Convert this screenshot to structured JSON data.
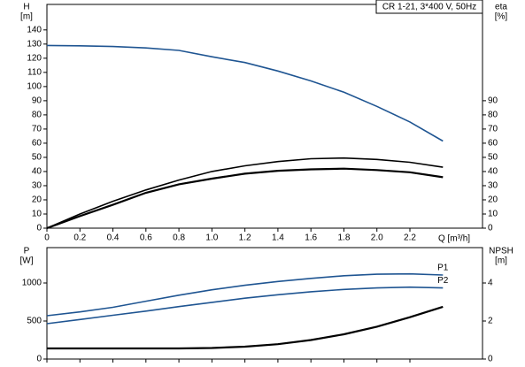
{
  "chart_data": [
    {
      "type": "line",
      "title": "CR 1-21, 3*400 V, 50Hz",
      "ylabel": "H",
      "yunit": "[m]",
      "y2label": "eta",
      "y2unit": "[%]",
      "xlabel": "Q [m³/h]",
      "x": [
        0,
        0.2,
        0.4,
        0.6,
        0.8,
        1.0,
        1.2,
        1.4,
        1.6,
        1.8,
        2.0,
        2.2,
        2.4
      ],
      "series": [
        {
          "color": "#1f5592",
          "axis": "y",
          "values": [
            129,
            128.8,
            128.3,
            127.3,
            125.5,
            121,
            117,
            111,
            104,
            96,
            86,
            75,
            61.5
          ]
        },
        {
          "color": "#000000",
          "axis": "y2",
          "values": [
            0,
            10,
            19,
            27,
            34,
            40,
            44,
            47,
            49,
            49.5,
            48.5,
            46.5,
            43
          ]
        },
        {
          "color": "#000000",
          "axis": "y2",
          "values": [
            0,
            8.5,
            16.5,
            25,
            31,
            35,
            38.5,
            40.5,
            41.5,
            42,
            41,
            39.5,
            36
          ]
        }
      ],
      "xlim": [
        0,
        2.64
      ],
      "xticks": [
        0,
        0.2,
        0.4,
        0.6,
        0.8,
        {
          "value": 1,
          "label": "1.0"
        },
        1.2,
        1.4,
        1.6,
        1.8,
        {
          "value": 2,
          "label": "2.0"
        },
        2.2
      ],
      "ylim": [
        0,
        158
      ],
      "yticks": [
        0,
        10,
        20,
        30,
        40,
        50,
        60,
        70,
        80,
        90,
        100,
        110,
        120,
        130,
        140
      ],
      "y2lim": [
        0,
        158
      ],
      "y2ticks": [
        0,
        10,
        20,
        30,
        40,
        50,
        60,
        70,
        80,
        90
      ]
    },
    {
      "type": "line",
      "ylabel": "P",
      "yunit": "[W]",
      "y2label": "NPSH",
      "y2unit": "[m]",
      "x": [
        0,
        0.2,
        0.4,
        0.6,
        0.8,
        1.0,
        1.2,
        1.4,
        1.6,
        1.8,
        2.0,
        2.2,
        2.4
      ],
      "series": [
        {
          "name": "P1",
          "color": "#1f5592",
          "axis": "y",
          "values": [
            570,
            620,
            680,
            760,
            840,
            910,
            970,
            1020,
            1060,
            1095,
            1115,
            1120,
            1105
          ]
        },
        {
          "name": "P2",
          "color": "#1f5592",
          "axis": "y",
          "values": [
            465,
            520,
            575,
            630,
            690,
            745,
            800,
            845,
            885,
            915,
            935,
            945,
            935
          ]
        },
        {
          "color": "#000000",
          "axis": "y2",
          "values": [
            0.56,
            0.56,
            0.56,
            0.56,
            0.56,
            0.58,
            0.65,
            0.78,
            1.0,
            1.3,
            1.7,
            2.2,
            2.75
          ]
        }
      ],
      "xlim": [
        0,
        2.64
      ],
      "ylim": [
        0,
        1465
      ],
      "yticks": [
        0,
        500,
        1000
      ],
      "y2lim": [
        0,
        5.86
      ],
      "y2ticks": [
        0,
        2,
        4
      ]
    }
  ]
}
